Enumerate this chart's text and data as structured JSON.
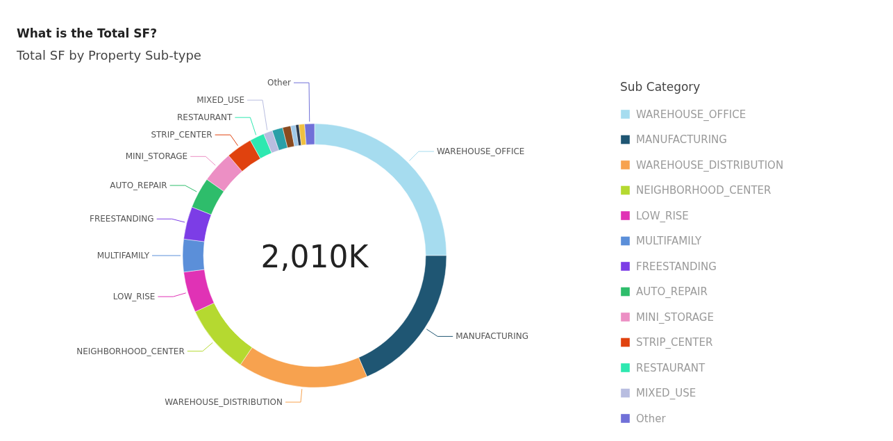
{
  "chart_data": {
    "type": "donut",
    "title": "What is the Total SF?",
    "subtitle": "Total SF by Property Sub-type",
    "legend_title": "Sub Category",
    "legend": "right",
    "annotations": [
      "2,010K"
    ],
    "categories": [
      "WAREHOUSE_OFFICE",
      "MANUFACTURING",
      "WAREHOUSE_DISTRIBUTION",
      "NEIGHBORHOOD_CENTER",
      "LOW_RISE",
      "MULTIFAMILY",
      "FREESTANDING",
      "AUTO_REPAIR",
      "MINI_STORAGE",
      "STRIP_CENTER",
      "RESTAURANT",
      "MIXED_USE",
      null,
      null,
      null,
      null,
      null,
      "Other"
    ],
    "values": [
      25,
      18.5,
      16,
      8.5,
      5,
      4,
      4,
      3.8,
      3.9,
      3.2,
      1.8,
      1.1,
      1.3,
      1.0,
      0.6,
      0.4,
      0.7,
      1.2
    ],
    "colors": [
      "#a6dcef",
      "#1f5673",
      "#f7a24f",
      "#b5d930",
      "#e032b5",
      "#5b8fd9",
      "#7c3de6",
      "#2ebd6b",
      "#ec8fc4",
      "#e0420e",
      "#2ee8b0",
      "#b8bde0",
      "#2a9fa8",
      "#8a4a20",
      "#a0c8e8",
      "#2a3a50",
      "#f0c040",
      "#7070d8"
    ]
  }
}
